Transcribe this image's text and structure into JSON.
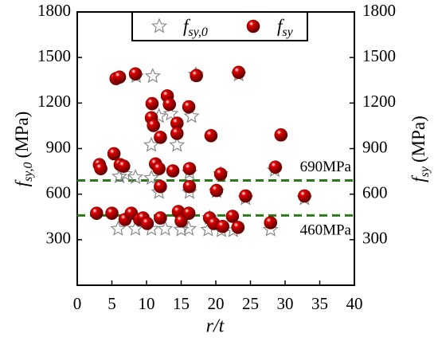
{
  "chart_data": {
    "type": "scatter",
    "x_label": "r/t",
    "y_label": {
      "symbol": "f",
      "subscript": "sy,0",
      "unit": "(MPa)"
    },
    "y2_label": {
      "symbol": "f",
      "subscript": "sy",
      "unit": "(MPa)"
    },
    "xlim": [
      0,
      40
    ],
    "xticks": [
      0,
      5,
      10,
      15,
      20,
      25,
      30,
      35,
      40
    ],
    "ylim": [
      0,
      1800
    ],
    "yticks": [
      300,
      600,
      900,
      1200,
      1500,
      1800
    ],
    "y2lim": [
      0,
      1800
    ],
    "y2ticks": [
      300,
      600,
      900,
      1200,
      1500,
      1800
    ],
    "hlines": [
      {
        "value": 690,
        "label": "690MPa"
      },
      {
        "value": 460,
        "label": "460MPa"
      }
    ],
    "hline_color": "#2a7a1a",
    "series": [
      {
        "name": "fsy,0",
        "marker": "star",
        "color": "#888888",
        "x": [
          5.9,
          8.4,
          10.7,
          12.7,
          15,
          16.1,
          18.9,
          20.8,
          22.5,
          27.9,
          32.8,
          24.3,
          23.3,
          17.1,
          10.9,
          8.5,
          10.7,
          14.4,
          11.8,
          13.5,
          16.5,
          6.1,
          8.4,
          10.7,
          6.9,
          11.8,
          16.2,
          16.2,
          20.7,
          20.1,
          19.1,
          28.5
        ],
        "values": [
          371,
          371,
          371,
          371,
          366,
          371,
          366,
          361,
          361,
          366,
          572,
          572,
          1387,
          1387,
          1377,
          1377,
          923,
          923,
          1113,
          1129,
          1113,
          716,
          711,
          706,
          732,
          613,
          742,
          613,
          732,
          618,
          443,
          758
        ]
      },
      {
        "name": "fsy",
        "marker": "sphere",
        "color": "#e00000",
        "x": [
          2.8,
          3.2,
          3.4,
          5,
          5.3,
          5.6,
          6.1,
          6.2,
          6.7,
          6.9,
          7.8,
          8.4,
          9,
          9.5,
          10.1,
          10.8,
          10.7,
          11,
          11.3,
          11.8,
          12,
          12,
          12,
          13,
          13.3,
          13.8,
          14.4,
          14.4,
          14.6,
          15,
          16.1,
          16.2,
          16.2,
          16.1,
          17.2,
          19.3,
          20.1,
          20.7,
          19.1,
          19.7,
          21,
          23.3,
          22.4,
          23.2,
          24.3,
          27.9,
          28.6,
          29.4,
          32.8
        ],
        "values": [
          474,
          794,
          768,
          474,
          866,
          1361,
          1371,
          794,
          784,
          433,
          474,
          1392,
          433,
          443,
          407,
          1196,
          1103,
          1052,
          799,
          768,
          974,
          650,
          443,
          1247,
          1191,
          753,
          1067,
          1000,
          485,
          423,
          1175,
          768,
          650,
          474,
          1381,
          985,
          624,
          732,
          443,
          407,
          387,
          1402,
          454,
          381,
          588,
          412,
          778,
          990,
          588
        ]
      }
    ]
  }
}
